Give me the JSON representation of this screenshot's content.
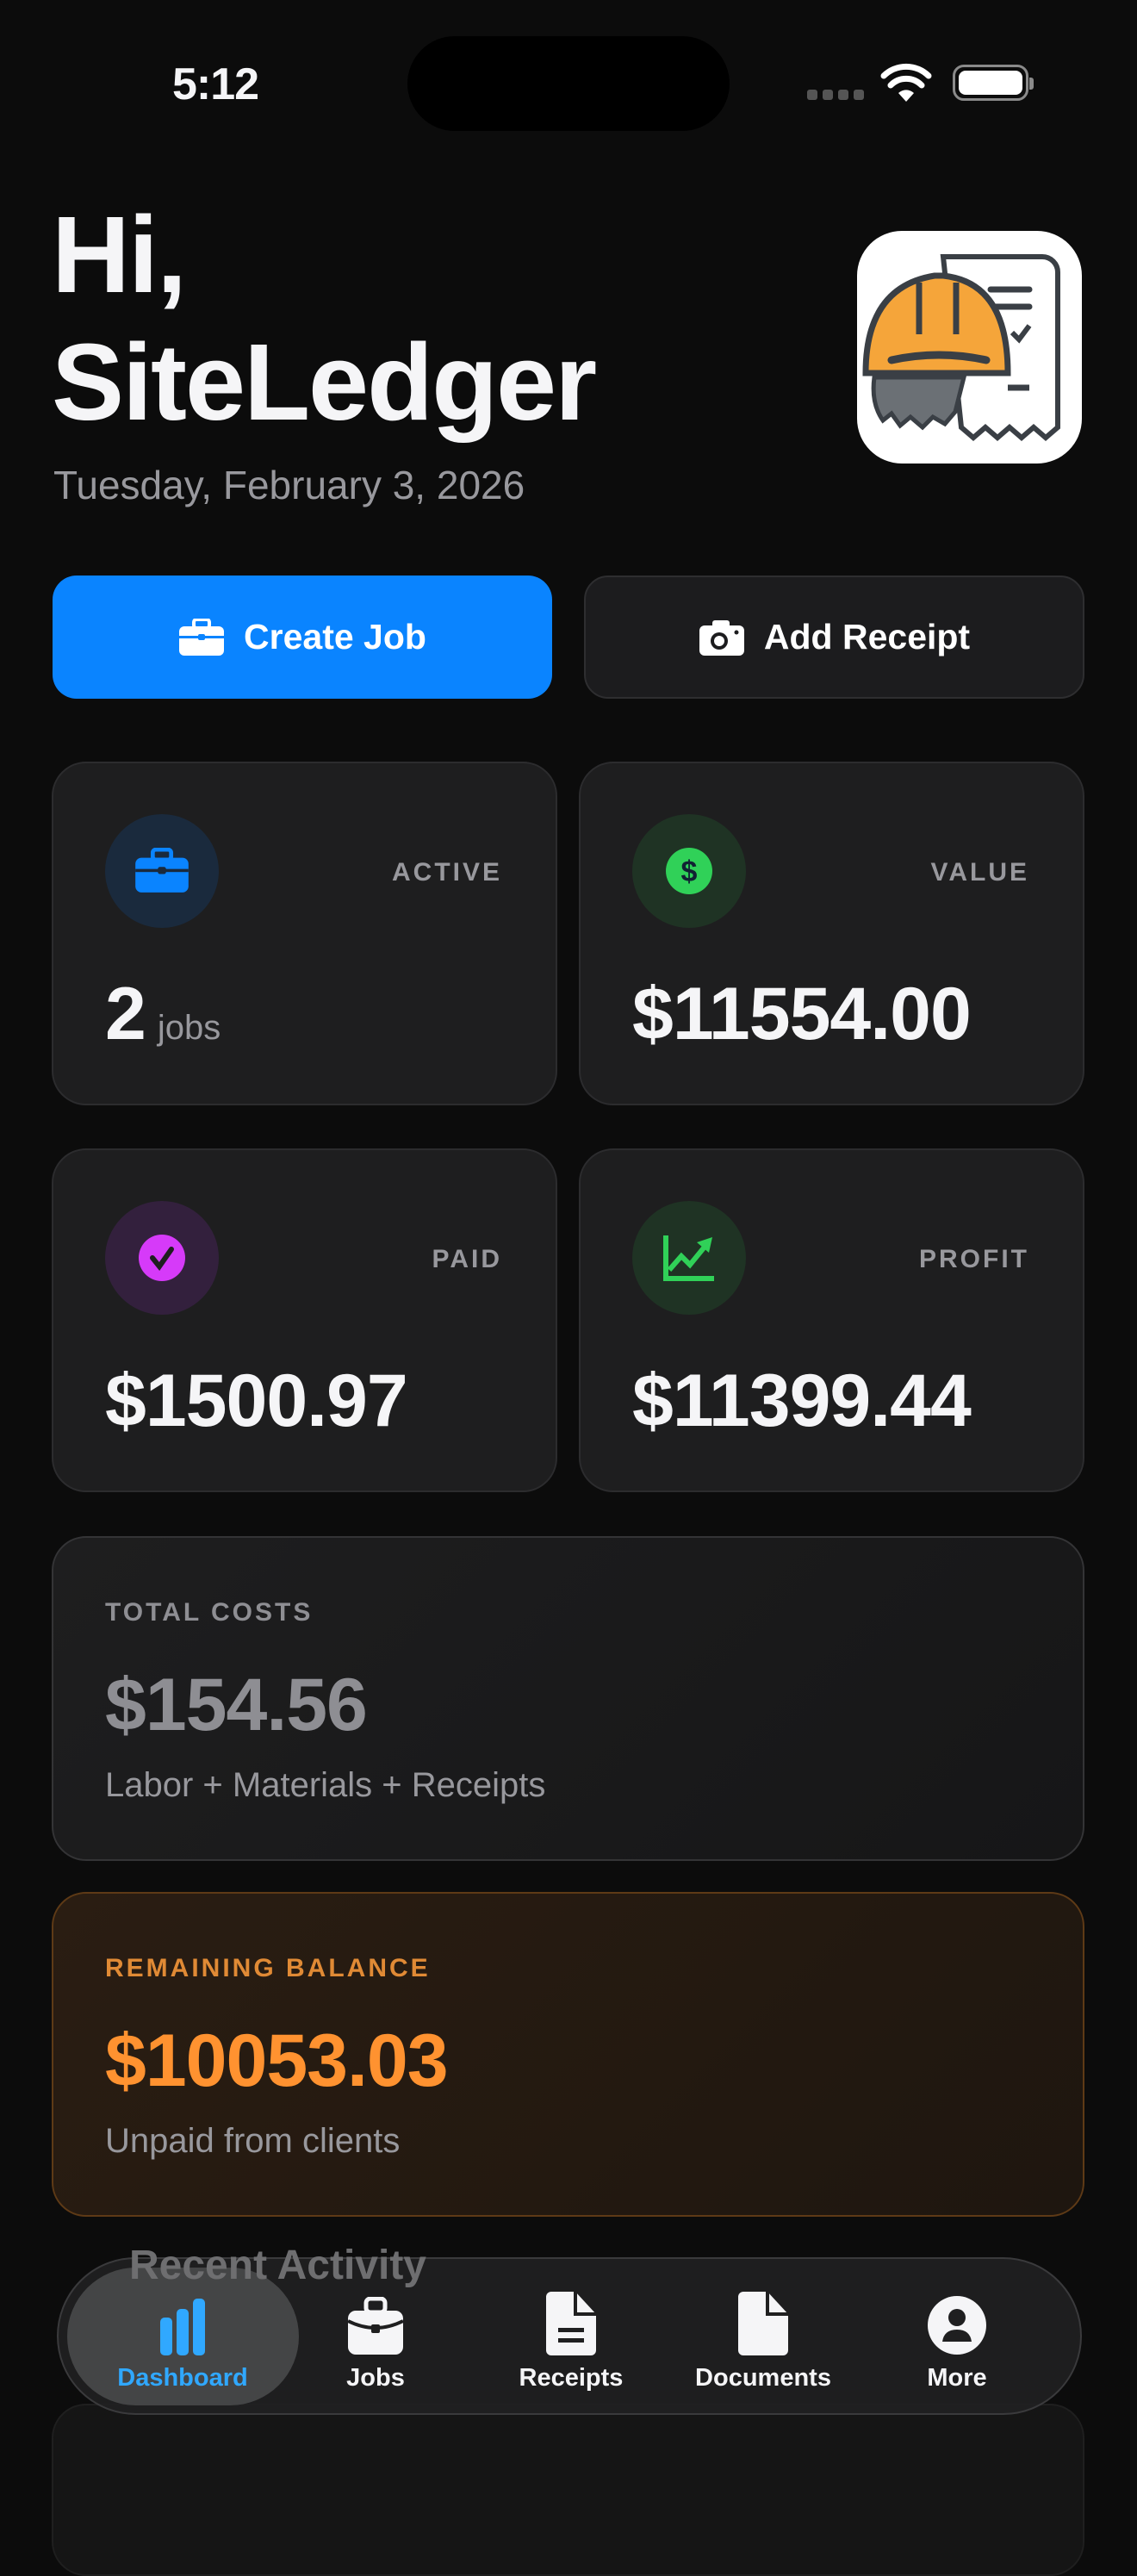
{
  "status_bar": {
    "time": "5:12"
  },
  "header": {
    "greeting_line1": "Hi,",
    "greeting_line2": "SiteLedger",
    "date": "Tuesday, February 3, 2026"
  },
  "actions": {
    "create_job": "Create Job",
    "add_receipt": "Add Receipt"
  },
  "stats": [
    {
      "label": "ACTIVE",
      "value": "2",
      "unit": "jobs",
      "icon": "briefcase-icon",
      "color": "#0a84ff"
    },
    {
      "label": "VALUE",
      "value": "$11554.00",
      "icon": "dollar-circle-icon",
      "color": "#30d158"
    },
    {
      "label": "PAID",
      "value": "$1500.97",
      "icon": "checkmark-circle-icon",
      "color": "#d63af9"
    },
    {
      "label": "PROFIT",
      "value": "$11399.44",
      "icon": "chart-line-up-icon",
      "color": "#30d158"
    }
  ],
  "total_costs": {
    "label": "TOTAL COSTS",
    "value": "$154.56",
    "subtitle": "Labor + Materials + Receipts"
  },
  "remaining_balance": {
    "label": "REMAINING BALANCE",
    "value": "$10053.03",
    "subtitle": "Unpaid from clients",
    "color": "#ff9230"
  },
  "background_section": {
    "title": "Recent Activity"
  },
  "tab_bar": {
    "active": "Dashboard",
    "active_color": "#30a8ff",
    "items": [
      {
        "label": "Dashboard",
        "icon": "chart-bar-icon"
      },
      {
        "label": "Jobs",
        "icon": "briefcase-icon"
      },
      {
        "label": "Receipts",
        "icon": "receipt-document-icon"
      },
      {
        "label": "Documents",
        "icon": "document-icon"
      },
      {
        "label": "More",
        "icon": "person-circle-icon"
      }
    ]
  }
}
